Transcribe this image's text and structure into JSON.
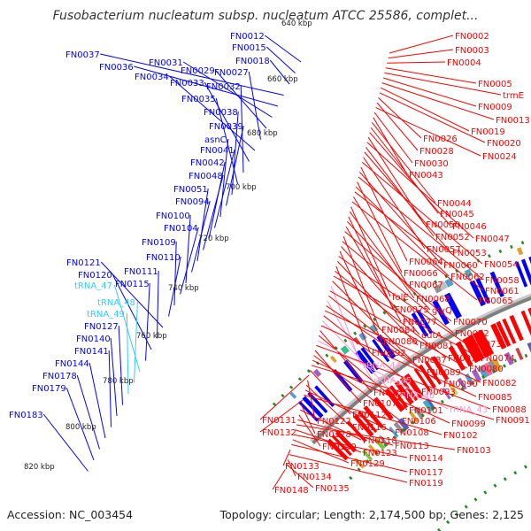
{
  "title": "Fusobacterium nucleatum subsp. nucleatum ATCC 25586, complet...",
  "footer": {
    "accession": "Accession: NC_003454",
    "summary": "Topology: circular; Length: 2,174,500 bp; Genes: 2,125"
  },
  "colors": {
    "forward_gene": "#0000ff",
    "reverse_gene": "#ff0000",
    "trna": "#33ccff",
    "rrna": "#ff99cc",
    "backbone": "#808080",
    "dots": "#228b22"
  },
  "kbp_marks": [
    "640 kbp",
    "660 kbp",
    "680 kbp",
    "700 kbp",
    "720 kbp",
    "740 kbp",
    "760 kbp",
    "780 kbp",
    "800 kbp",
    "820 kbp"
  ],
  "left_labels": [
    "FN0012",
    "FN0015",
    "FN0018",
    "FN0037",
    "FN0036",
    "FN0031",
    "FN0029",
    "FN0027",
    "FN0034",
    "FN0033",
    "FN0032",
    "FN0035",
    "FN0038",
    "FN0039",
    "asnC",
    "FN0041",
    "FN0042",
    "FN0048",
    "FN0051",
    "FN0094",
    "FN0100",
    "FN0104",
    "FN0109",
    "FN0110",
    "FN0121",
    "FN0111",
    "FN0120",
    "FN0115",
    "tRNA_47",
    "tRNA_48",
    "tRNA_49",
    "FN0127",
    "FN0140",
    "FN0141",
    "FN0144",
    "FN0178",
    "FN0179",
    "FN0183"
  ],
  "right_labels": [
    "FN0002",
    "FN0003",
    "FN0004",
    "FN0005",
    "trmE",
    "FN0009",
    "FN0013",
    "FN0019",
    "FN0020",
    "FN0026",
    "FN0028",
    "FN0024",
    "FN0030",
    "FN0043",
    "FN0044",
    "FN0045",
    "FN0046",
    "FN0050",
    "FN0047",
    "FN0052",
    "FN0053",
    "FN0057",
    "FN0054",
    "FN0064",
    "FN0060",
    "FN0058",
    "FN0066",
    "FN0062",
    "FN0061",
    "FN0067",
    "FN0065",
    "folE",
    "FN0068",
    "FN0075",
    "glyQ",
    "FN0077",
    "FN0070",
    "FN0084",
    "FN0072",
    "eutA",
    "FN0086",
    "FN0073",
    "FN0081",
    "FN0092",
    "FN0079",
    "FN0074",
    "FN0087",
    "rRNA_44",
    "FN0080",
    "FN0089",
    "rRNA_45",
    "FN0090",
    "FN0082",
    "FN0093",
    "rRNA_46",
    "FN0085",
    "FN0105",
    "FN0101",
    "rRNA_43",
    "FN0088",
    "FN0107",
    "FN0106",
    "FN0099",
    "FN0091",
    "FN0112",
    "FN0131",
    "FN0122",
    "FN0116",
    "FN0108",
    "FN0102",
    "FN0132",
    "FN0128",
    "FN0118",
    "FN0130",
    "FN0113",
    "FN0103",
    "FN0123",
    "FN0114",
    "FN0129",
    "FN0117",
    "FN0133",
    "FN0119",
    "FN0134",
    "FN0135",
    "FN0148"
  ]
}
